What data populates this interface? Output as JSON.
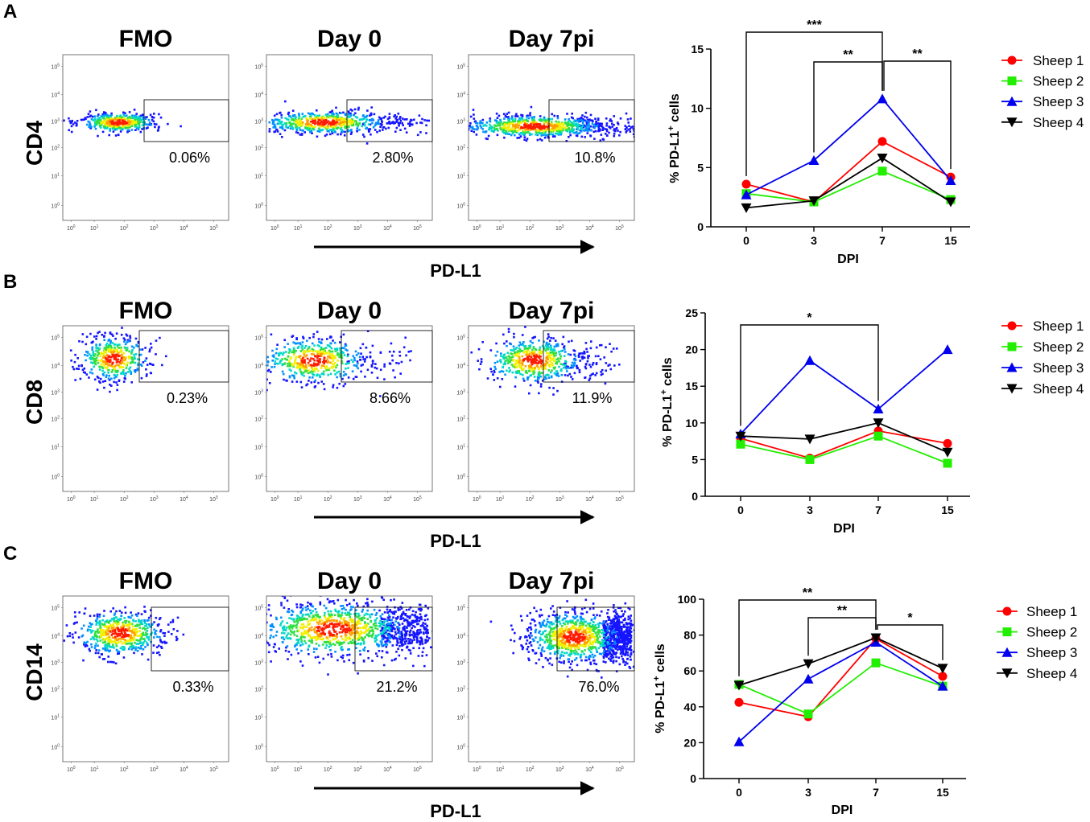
{
  "figure": {
    "panels": [
      {
        "letter": "A",
        "marker": "CD4",
        "xaxis": "PD-L1",
        "flow_titles": [
          "FMO",
          "Day 0",
          "Day 7pi"
        ],
        "gate_percents": [
          "0.06%",
          "2.80%",
          "10.8%"
        ],
        "y_ticks": [
          "10^0",
          "10^1",
          "10^2",
          "10^3",
          "10^4",
          "10^5"
        ],
        "x_ticks": [
          "10^0",
          "10^1",
          "10^2",
          "10^3",
          "10^4",
          "10^5"
        ]
      },
      {
        "letter": "B",
        "marker": "CD8",
        "xaxis": "PD-L1",
        "flow_titles": [
          "FMO",
          "Day 0",
          "Day 7pi"
        ],
        "gate_percents": [
          "0.23%",
          "8.66%",
          "11.9%"
        ],
        "y_ticks": [
          "10^0",
          "10^1",
          "10^2",
          "10^3",
          "10^4",
          "10^5"
        ],
        "x_ticks": [
          "10^0",
          "10^1",
          "10^2",
          "10^3",
          "10^4",
          "10^5"
        ]
      },
      {
        "letter": "C",
        "marker": "CD14",
        "xaxis": "PD-L1",
        "flow_titles": [
          "FMO",
          "Day 0",
          "Day 7pi"
        ],
        "gate_percents": [
          "0.33%",
          "21.2%",
          "76.0%"
        ],
        "y_ticks": [
          "10^0",
          "10^1",
          "10^2",
          "10^3",
          "10^4",
          "10^5"
        ],
        "x_ticks": [
          "10^0",
          "10^1",
          "10^2",
          "10^3",
          "10^4",
          "10^5"
        ]
      }
    ]
  },
  "chart_data": [
    {
      "type": "line",
      "panel": "A",
      "xlabel": "DPI",
      "ylabel": "% PD-L1+ cells",
      "ylabel_main": "% PD-L1",
      "ylabel_sup": "+",
      "ylabel_end": " cells",
      "categories": [
        "0",
        "3",
        "7",
        "15"
      ],
      "ylim": [
        0,
        15
      ],
      "yticks": [
        0,
        5,
        10,
        15
      ],
      "series": [
        {
          "name": "Sheep 1",
          "color": "#ff0000",
          "marker": "circle",
          "values": [
            3.6,
            2.1,
            7.2,
            4.2
          ]
        },
        {
          "name": "Sheep 2",
          "color": "#22ee00",
          "marker": "square",
          "values": [
            2.8,
            2.1,
            4.7,
            2.3
          ]
        },
        {
          "name": "Sheep 3",
          "color": "#0000ee",
          "marker": "triangle-up",
          "values": [
            2.7,
            5.6,
            10.8,
            3.9
          ]
        },
        {
          "name": "Sheep 4",
          "color": "#000000",
          "marker": "triangle-down",
          "values": [
            1.6,
            2.2,
            5.8,
            2.1
          ]
        }
      ],
      "significance": [
        {
          "from": 0,
          "to": 2,
          "label": "***"
        },
        {
          "from": 1,
          "to": 2,
          "label": "**"
        },
        {
          "from": 2,
          "to": 3,
          "label": "**"
        }
      ]
    },
    {
      "type": "line",
      "panel": "B",
      "xlabel": "DPI",
      "ylabel": "% PD-L1+ cells",
      "ylabel_main": "% PD-L1",
      "ylabel_sup": "+",
      "ylabel_end": " cells",
      "categories": [
        "0",
        "3",
        "7",
        "15"
      ],
      "ylim": [
        0,
        25
      ],
      "yticks": [
        0,
        5,
        10,
        15,
        20,
        25
      ],
      "series": [
        {
          "name": "Sheep 1",
          "color": "#ff0000",
          "marker": "circle",
          "values": [
            7.9,
            5.2,
            8.9,
            7.2
          ]
        },
        {
          "name": "Sheep 2",
          "color": "#22ee00",
          "marker": "square",
          "values": [
            7.1,
            5.0,
            8.2,
            4.5
          ]
        },
        {
          "name": "Sheep 3",
          "color": "#0000ee",
          "marker": "triangle-up",
          "values": [
            8.5,
            18.5,
            11.9,
            20.0
          ]
        },
        {
          "name": "Sheep 4",
          "color": "#000000",
          "marker": "triangle-down",
          "values": [
            8.2,
            7.8,
            10.0,
            6.0
          ]
        }
      ],
      "significance": [
        {
          "from": 0,
          "to": 2,
          "label": "*"
        }
      ]
    },
    {
      "type": "line",
      "panel": "C",
      "xlabel": "DPI",
      "ylabel": "% PD-L1+ cells",
      "ylabel_main": "% PD-L1",
      "ylabel_sup": "+",
      "ylabel_end": " cells",
      "categories": [
        "0",
        "3",
        "7",
        "15"
      ],
      "ylim": [
        0,
        100
      ],
      "yticks": [
        0,
        20,
        40,
        60,
        80,
        100
      ],
      "series": [
        {
          "name": "Sheep 1",
          "color": "#ff0000",
          "marker": "circle",
          "values": [
            42.5,
            34.5,
            78.0,
            57.0
          ]
        },
        {
          "name": "Sheep 2",
          "color": "#22ee00",
          "marker": "square",
          "values": [
            52.5,
            36.0,
            64.5,
            51.5
          ]
        },
        {
          "name": "Sheep 3",
          "color": "#0000ee",
          "marker": "triangle-up",
          "values": [
            20.5,
            55.5,
            76.0,
            51.5
          ]
        },
        {
          "name": "Sheep 4",
          "color": "#000000",
          "marker": "triangle-down",
          "values": [
            52.0,
            64.0,
            78.5,
            61.5
          ]
        }
      ],
      "significance": [
        {
          "from": 0,
          "to": 2,
          "label": "**"
        },
        {
          "from": 1,
          "to": 2,
          "label": "**"
        },
        {
          "from": 2,
          "to": 3,
          "label": "*"
        }
      ]
    }
  ]
}
